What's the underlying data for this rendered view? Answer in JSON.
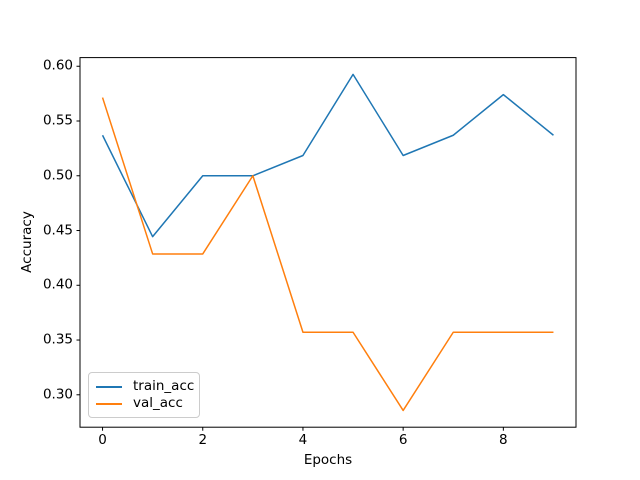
{
  "chart_data": {
    "type": "line",
    "title": "",
    "xlabel": "Epochs",
    "ylabel": "Accuracy",
    "x": [
      0,
      1,
      2,
      3,
      4,
      5,
      6,
      7,
      8,
      9
    ],
    "series": [
      {
        "name": "train_acc",
        "color": "#1f77b4",
        "values": [
          0.537,
          0.4444,
          0.5,
          0.5,
          0.5185,
          0.5926,
          0.5185,
          0.537,
          0.5741,
          0.537
        ]
      },
      {
        "name": "val_acc",
        "color": "#ff7f0e",
        "values": [
          0.5714,
          0.4286,
          0.4286,
          0.5,
          0.3571,
          0.3571,
          0.2857,
          0.3571,
          0.3571,
          0.3571
        ]
      }
    ],
    "xlim": [
      -0.45,
      9.45
    ],
    "ylim": [
      0.2704,
      0.6079
    ],
    "xticks": [
      0,
      2,
      4,
      6,
      8
    ],
    "xtick_labels": [
      "0",
      "2",
      "4",
      "6",
      "8"
    ],
    "yticks": [
      0.3,
      0.35,
      0.4,
      0.45,
      0.5,
      0.55,
      0.6
    ],
    "ytick_labels": [
      "0.30",
      "0.35",
      "0.40",
      "0.45",
      "0.50",
      "0.55",
      "0.60"
    ],
    "grid": false,
    "legend_position": "lower left",
    "line_width": 1.5,
    "spine_color": "#000000",
    "background": "#ffffff"
  }
}
